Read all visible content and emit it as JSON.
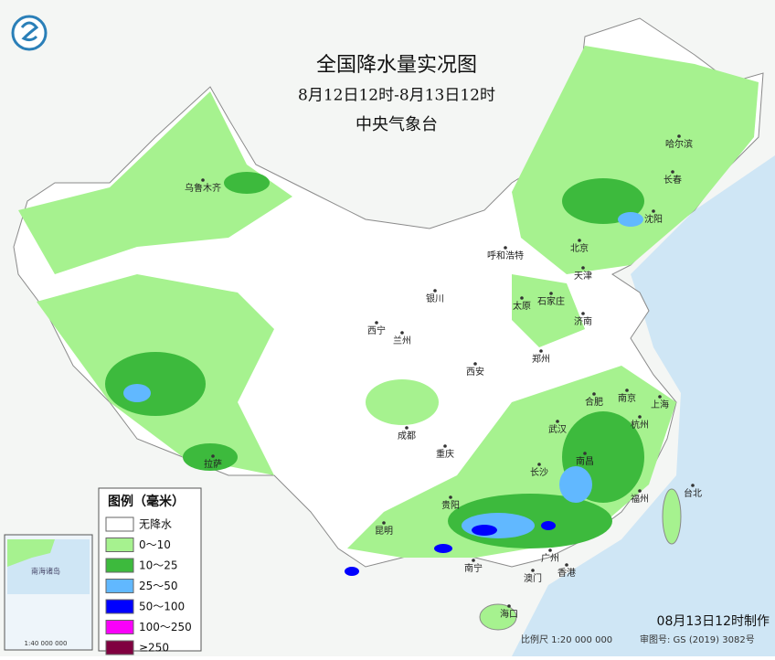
{
  "header": {
    "title": "全国降水量实况图",
    "subtitle": "8月12日12时-8月13日12时",
    "agency": "中央气象台"
  },
  "cities": [
    "乌鲁木齐",
    "哈尔滨",
    "长春",
    "沈阳",
    "北京",
    "天津",
    "呼和浩特",
    "石家庄",
    "太原",
    "银川",
    "济南",
    "西宁",
    "兰州",
    "郑州",
    "西安",
    "合肥",
    "南京",
    "上海",
    "杭州",
    "武汉",
    "成都",
    "重庆",
    "南昌",
    "长沙",
    "福州",
    "台北",
    "贵阳",
    "昆明",
    "拉萨",
    "广州",
    "南宁",
    "香港",
    "澳门",
    "海口"
  ],
  "legend": {
    "title": "图例（毫米）",
    "items": [
      {
        "label": "无降水",
        "color": "#ffffff"
      },
      {
        "label": "0～10",
        "color": "#a6f28f"
      },
      {
        "label": "10～25",
        "color": "#3dba3d"
      },
      {
        "label": "25～50",
        "color": "#61b8ff"
      },
      {
        "label": "50～100",
        "color": "#0000fe"
      },
      {
        "label": "100～250",
        "color": "#fa00fa"
      },
      {
        "label": "≥250",
        "color": "#800040"
      }
    ]
  },
  "inset": {
    "name": "南海诸岛",
    "scale": "1:40 000 000"
  },
  "footer": {
    "issued": "08月13日12时制作",
    "scale": "比例尺 1:20 000 000",
    "approval": "审图号: GS (2019) 3082号"
  }
}
